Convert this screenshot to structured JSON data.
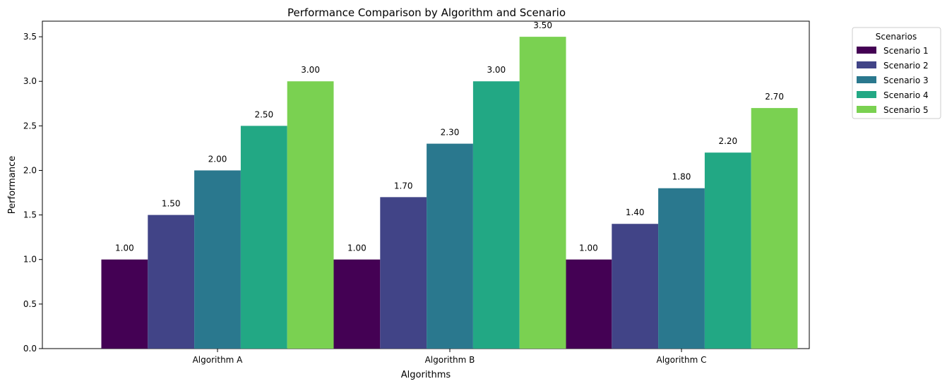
{
  "chart_data": {
    "type": "bar",
    "title": "Performance Comparison by Algorithm and Scenario",
    "xlabel": "Algorithms",
    "ylabel": "Performance",
    "categories": [
      "Algorithm A",
      "Algorithm B",
      "Algorithm C"
    ],
    "ylim": [
      0,
      3.675
    ],
    "yticks": [
      "0.0",
      "0.5",
      "1.0",
      "1.5",
      "2.0",
      "2.5",
      "3.0",
      "3.5"
    ],
    "grid": false,
    "legend": {
      "title": "Scenarios",
      "placement": "outside-top-right"
    },
    "series": [
      {
        "name": "Scenario 1",
        "color": "#440154",
        "values": [
          1.0,
          1.0,
          1.0
        ],
        "labels": [
          "1.00",
          "1.00",
          "1.00"
        ]
      },
      {
        "name": "Scenario 2",
        "color": "#414487",
        "values": [
          1.5,
          1.7,
          1.4
        ],
        "labels": [
          "1.50",
          "1.70",
          "1.40"
        ]
      },
      {
        "name": "Scenario 3",
        "color": "#2a788e",
        "values": [
          2.0,
          2.3,
          1.8
        ],
        "labels": [
          "2.00",
          "2.30",
          "1.80"
        ]
      },
      {
        "name": "Scenario 4",
        "color": "#22a884",
        "values": [
          2.5,
          3.0,
          2.2
        ],
        "labels": [
          "2.50",
          "3.00",
          "2.20"
        ]
      },
      {
        "name": "Scenario 5",
        "color": "#7ad151",
        "values": [
          3.0,
          3.5,
          2.7
        ],
        "labels": [
          "3.00",
          "3.50",
          "2.70"
        ]
      }
    ]
  }
}
